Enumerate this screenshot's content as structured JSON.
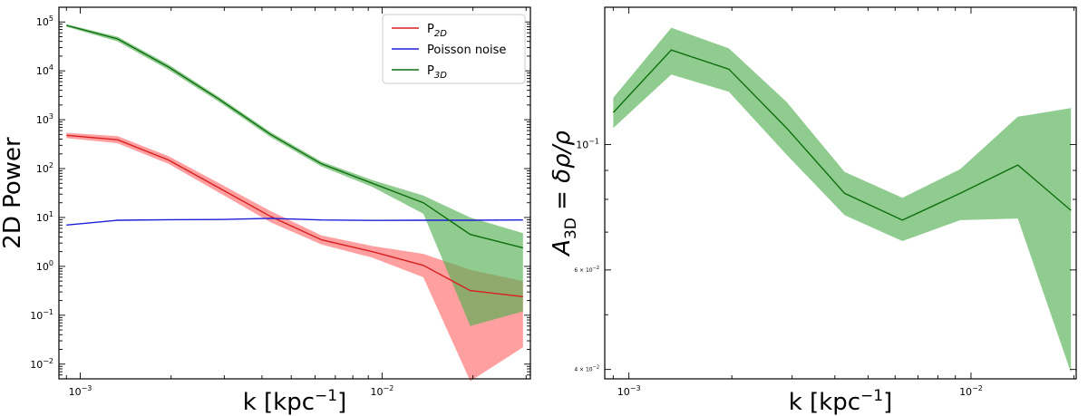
{
  "chart_data": [
    {
      "type": "line",
      "xscale": "log",
      "yscale": "log",
      "xlabel": "k [kpc",
      "xlabel_sup": "−1",
      "xlabel_close": "]",
      "ylabel": "2D Power",
      "xlim": [
        0.00085,
        0.031
      ],
      "ylim": [
        0.005,
        200000
      ],
      "x_ticks": [
        {
          "value": 0.001,
          "base": "10",
          "exp": "−3"
        },
        {
          "value": 0.01,
          "base": "10",
          "exp": "−2"
        }
      ],
      "y_ticks": [
        {
          "value": 0.01,
          "base": "10",
          "exp": "−2"
        },
        {
          "value": 0.1,
          "base": "10",
          "exp": "−1"
        },
        {
          "value": 1,
          "base": "10",
          "exp": "0"
        },
        {
          "value": 10,
          "base": "10",
          "exp": "1"
        },
        {
          "value": 100,
          "base": "10",
          "exp": "2"
        },
        {
          "value": 1000,
          "base": "10",
          "exp": "3"
        },
        {
          "value": 10000,
          "base": "10",
          "exp": "4"
        },
        {
          "value": 100000,
          "base": "10",
          "exp": "5"
        }
      ],
      "legend_position": "top-right",
      "series": [
        {
          "key": "p2d",
          "legend": {
            "base": "P",
            "sub": "2D"
          },
          "color": "#d62020",
          "band_color": "#ff6b6b",
          "x": [
            0.0009,
            0.00133,
            0.00196,
            0.00289,
            0.00427,
            0.0063,
            0.0093,
            0.0137,
            0.0196,
            0.0293
          ],
          "y": [
            480,
            390,
            150,
            40,
            10.5,
            3.5,
            2.0,
            1.05,
            0.32,
            0.24
          ],
          "lower": [
            420,
            330,
            125,
            32,
            8.0,
            2.8,
            1.5,
            0.6,
            0.0045,
            0.022
          ],
          "upper": [
            540,
            460,
            180,
            50,
            13.5,
            4.3,
            2.6,
            1.8,
            0.85,
            0.5
          ]
        },
        {
          "key": "poisson",
          "legend": {
            "base": "Poisson noise",
            "sub": ""
          },
          "color": "#1f1fd6",
          "x": [
            0.0009,
            0.00133,
            0.00196,
            0.00289,
            0.00427,
            0.0063,
            0.0093,
            0.0137,
            0.0196,
            0.0293
          ],
          "y": [
            7.0,
            8.8,
            9.0,
            9.1,
            9.6,
            8.9,
            8.7,
            8.8,
            8.8,
            8.9
          ]
        },
        {
          "key": "p3d",
          "legend": {
            "base": "P",
            "sub": "3D"
          },
          "color": "#0e6e0e",
          "band_color": "#55b055",
          "x": [
            0.0009,
            0.00133,
            0.00196,
            0.00289,
            0.00427,
            0.0063,
            0.0093,
            0.0137,
            0.0196,
            0.0293
          ],
          "y": [
            85000,
            45000,
            12000,
            2600,
            500,
            125,
            50,
            20,
            4.5,
            2.4
          ],
          "lower": [
            80000,
            40000,
            10500,
            2300,
            440,
            110,
            42,
            12,
            0.06,
            0.12
          ],
          "upper": [
            90000,
            50000,
            13500,
            2900,
            560,
            140,
            58,
            28,
            10,
            4.8
          ]
        }
      ]
    },
    {
      "type": "line",
      "xscale": "log",
      "yscale": "log",
      "xlabel": "k [kpc",
      "xlabel_sup": "−1",
      "xlabel_close": "]",
      "ylabel": "A",
      "ylabel_sub": "3D",
      "ylabel_rest": " = δρ/ρ",
      "xlim": [
        0.00085,
        0.0203
      ],
      "ylim": [
        0.0385,
        0.175
      ],
      "x_ticks": [
        {
          "value": 0.001,
          "base": "10",
          "exp": "−3"
        },
        {
          "value": 0.01,
          "base": "10",
          "exp": "−2"
        }
      ],
      "y_ticks": [
        {
          "value": 0.04,
          "label": "4 × 10",
          "exp": "−2",
          "small": true
        },
        {
          "value": 0.06,
          "label": "6 × 10",
          "exp": "−2",
          "small": true
        },
        {
          "value": 0.1,
          "base": "10",
          "exp": "−1",
          "small": false
        }
      ],
      "series": [
        {
          "key": "a3d",
          "color": "#0e6e0e",
          "band_color": "#55b055",
          "x": [
            0.0009,
            0.00133,
            0.00196,
            0.00289,
            0.00427,
            0.0063,
            0.0093,
            0.0137,
            0.0196
          ],
          "y": [
            0.114,
            0.147,
            0.136,
            0.107,
            0.082,
            0.0735,
            0.082,
            0.092,
            0.0765
          ],
          "lower": [
            0.107,
            0.133,
            0.124,
            0.096,
            0.075,
            0.0675,
            0.0735,
            0.074,
            0.0395
          ],
          "upper": [
            0.121,
            0.161,
            0.148,
            0.119,
            0.0895,
            0.0805,
            0.0905,
            0.112,
            0.116
          ]
        }
      ]
    }
  ]
}
